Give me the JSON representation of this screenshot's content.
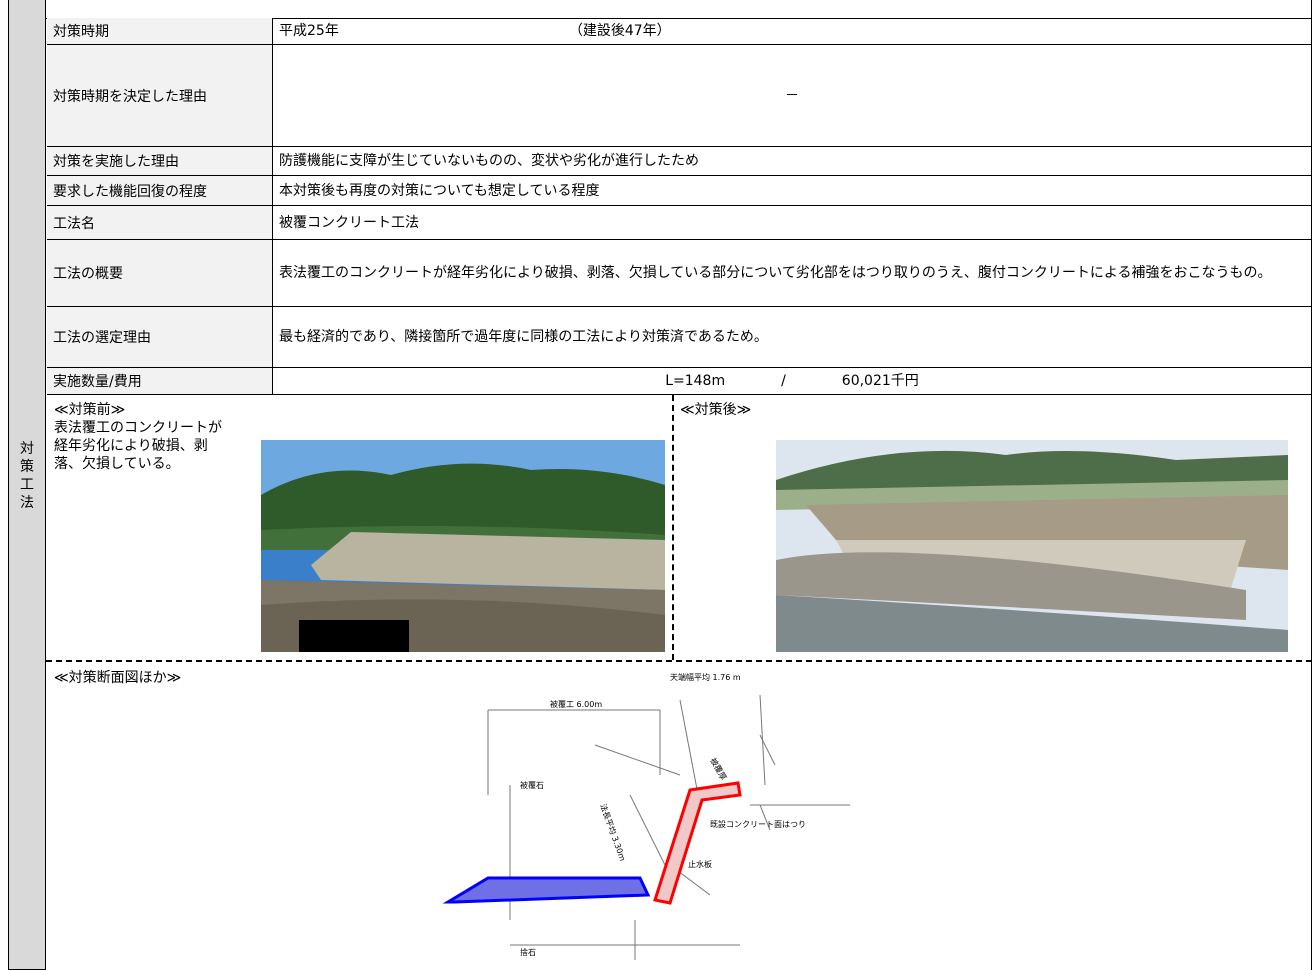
{
  "side_label": "対策工法",
  "rows": [
    {
      "label": "対策時期",
      "value": [
        "平成25年",
        "（建設後47年）"
      ]
    },
    {
      "label": "対策時期を決定した理由",
      "value": [
        "－"
      ]
    },
    {
      "label": "対策を実施した理由",
      "value": [
        "防護機能に支障が生じていないものの、変状や劣化が進行したため"
      ]
    },
    {
      "label": "要求した機能回復の程度",
      "value": [
        "本対策後も再度の対策についても想定している程度"
      ]
    },
    {
      "label": "工法名",
      "value": [
        "被覆コンクリート工法"
      ]
    },
    {
      "label": "工法の概要",
      "value": [
        "表法覆工のコンクリートが経年劣化により破損、剥落、欠損している部分について劣化部をはつり取りのうえ、腹付コンクリートによる補強をおこなうもの。"
      ]
    },
    {
      "label": "工法の選定理由",
      "value": [
        "最も経済的であり、隣接箇所で過年度に同様の工法により対策済であるため。"
      ]
    },
    {
      "label": "実施数量/費用",
      "value": [
        "L=148m",
        "/",
        "60,021千円"
      ]
    }
  ],
  "before": {
    "caption": "≪対策前≫",
    "text": "表法覆工のコンクリートが経年劣化により破損、剥落、欠損している。"
  },
  "after": {
    "caption": "≪対策後≫"
  },
  "section": {
    "caption": "≪対策断面図ほか≫",
    "labels": [
      "天端幅平均 1.76 m",
      "被覆工 6.00m",
      "被覆石",
      "法長平均 3.30m",
      "被覆厚",
      "既設コンクリート面はつり",
      "止水板",
      "捨石"
    ]
  }
}
